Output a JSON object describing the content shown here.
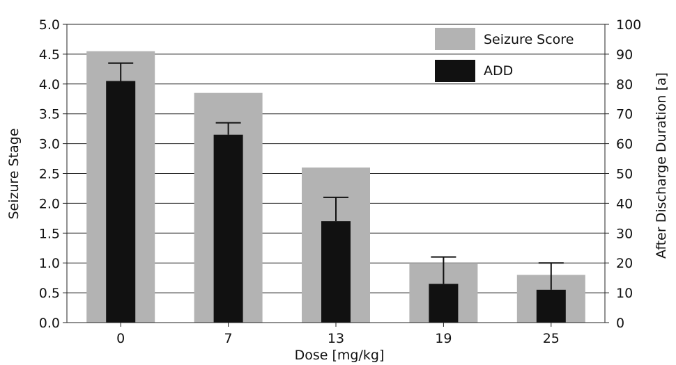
{
  "chart_data": {
    "type": "bar",
    "categories": [
      "0",
      "7",
      "13",
      "19",
      "25"
    ],
    "series": [
      {
        "name": "Seizure Score",
        "axis": "left",
        "color": "#b3b3b3",
        "values": [
          4.55,
          3.85,
          2.6,
          1.0,
          0.8
        ]
      },
      {
        "name": "ADD",
        "axis": "right",
        "color": "#111111",
        "values": [
          81,
          63,
          34,
          13,
          11
        ],
        "error": [
          6,
          4,
          8,
          9,
          9
        ]
      }
    ],
    "xlabel": "Dose [mg/kg]",
    "ylabel": "Seizure Stage",
    "y2label": "After Discharge Duration [a]",
    "ylim": [
      0,
      5.0
    ],
    "y2lim": [
      0,
      100
    ],
    "yticks": [
      "0.0",
      "0.5",
      "1.0",
      "1.5",
      "2.0",
      "2.5",
      "3.0",
      "3.5",
      "4.0",
      "4.5",
      "5.0"
    ],
    "y2ticks": [
      "0",
      "10",
      "20",
      "30",
      "40",
      "50",
      "60",
      "70",
      "80",
      "90",
      "100"
    ],
    "grid": true,
    "legend": "top-right"
  }
}
